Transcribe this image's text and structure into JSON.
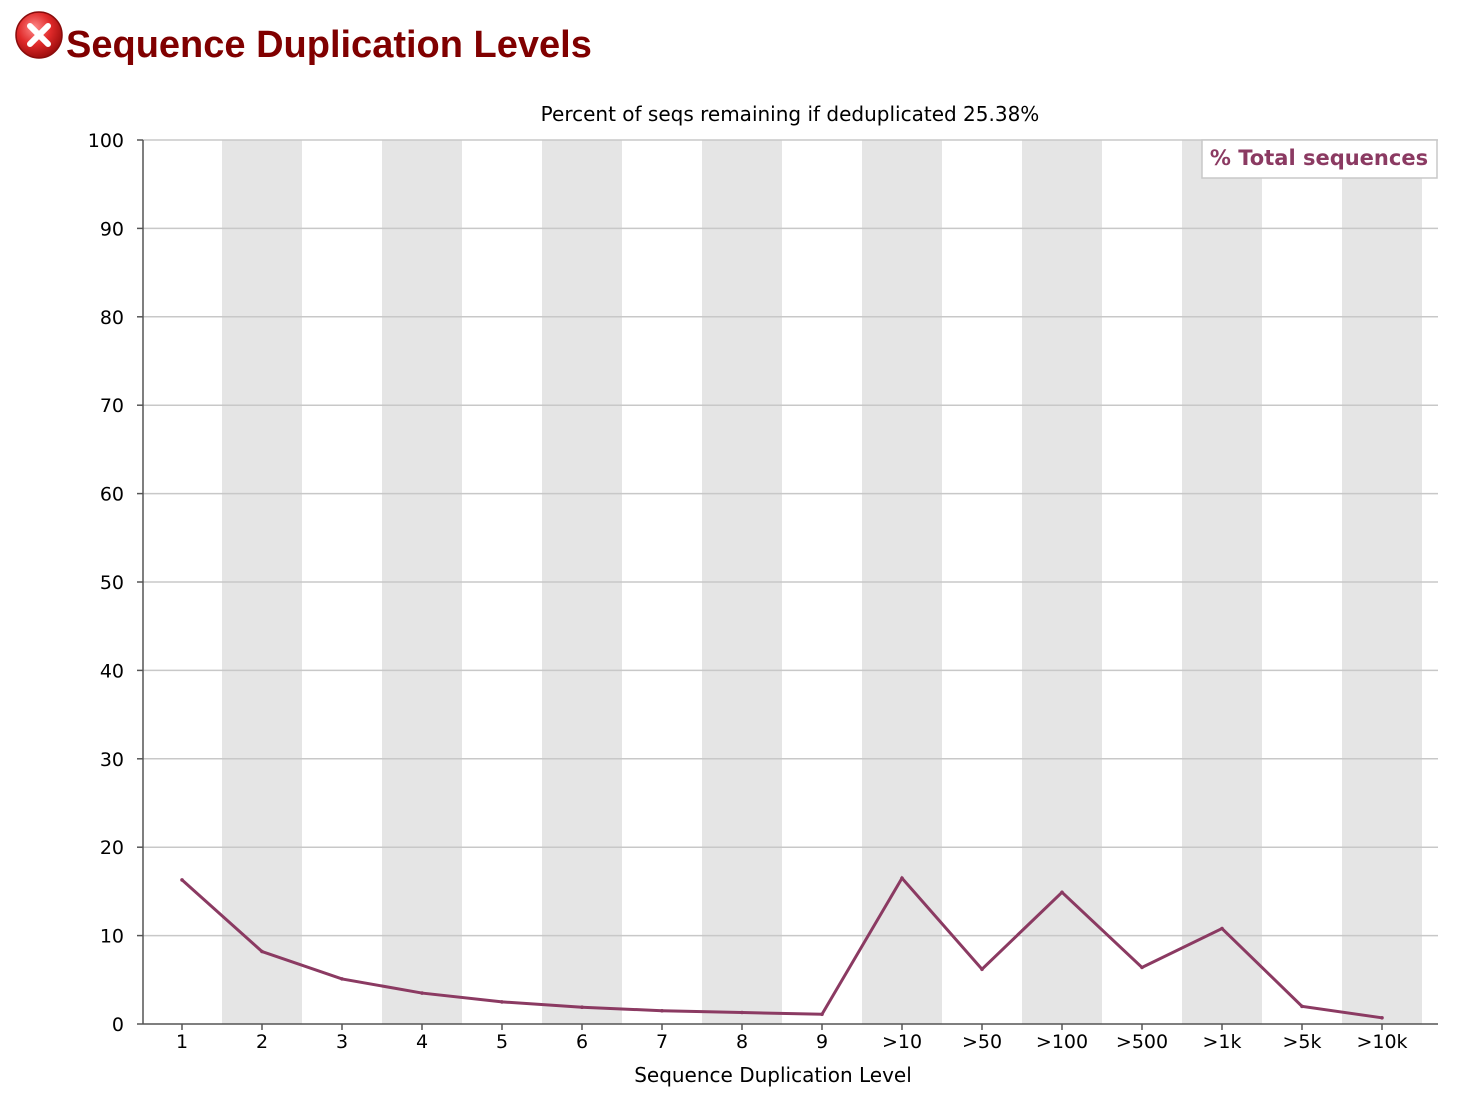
{
  "page": {
    "title": "Sequence Duplication Levels",
    "status_icon": "error-x-circle-icon",
    "colors": {
      "title": "#800000",
      "status": "#d62828",
      "series": "#8b3a62",
      "band": "#e5e5e5",
      "grid": "#c8c8c8"
    }
  },
  "chart_data": {
    "type": "line",
    "subtitle": "Percent of seqs remaining if deduplicated 25.38%",
    "xlabel": "Sequence Duplication Level",
    "ylabel": "",
    "categories": [
      "1",
      "2",
      "3",
      "4",
      "5",
      "6",
      "7",
      "8",
      "9",
      ">10",
      ">50",
      ">100",
      ">500",
      ">1k",
      ">5k",
      ">10k"
    ],
    "ylim": [
      0,
      100
    ],
    "yticks": [
      0,
      10,
      20,
      30,
      40,
      50,
      60,
      70,
      80,
      90,
      100
    ],
    "grid": true,
    "alternating_bands": true,
    "legend": {
      "position": "top-right",
      "entries": [
        "% Total sequences"
      ]
    },
    "series": [
      {
        "name": "% Total sequences",
        "color": "#8b3a62",
        "values": [
          16.3,
          8.2,
          5.1,
          3.5,
          2.5,
          1.9,
          1.5,
          1.3,
          1.1,
          16.5,
          6.2,
          14.9,
          6.4,
          10.8,
          2.0,
          0.7
        ]
      }
    ]
  }
}
